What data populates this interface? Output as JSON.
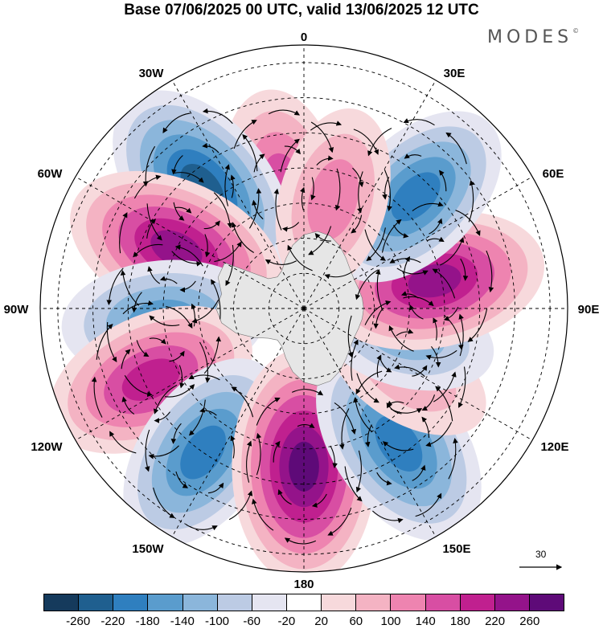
{
  "title": "Base 07/06/2025 00 UTC, valid 13/06/2025 12 UTC",
  "brand": {
    "name": "MODES",
    "mark": "©"
  },
  "map": {
    "projection": "polar-stereographic-south",
    "longitude_labels": {
      "north": "0",
      "ne": "30E",
      "ne2": "60E",
      "east": "90E",
      "se2": "120E",
      "se": "150E",
      "south": "180",
      "sw": "150W",
      "sw2": "120W",
      "west": "90W",
      "nw2": "60W",
      "nw": "30W"
    },
    "field_colors": {
      "pos": "#c0208f",
      "neg": "#2f7fbf",
      "land": "#e6e6e6"
    },
    "anomaly_centers": [
      {
        "lon": -10,
        "lat": -55,
        "value": 150
      },
      {
        "lon": -40,
        "lat": -45,
        "value": -230
      },
      {
        "lon": -65,
        "lat": -50,
        "value": 230
      },
      {
        "lon": -95,
        "lat": -50,
        "value": -170
      },
      {
        "lon": -115,
        "lat": -42,
        "value": 200
      },
      {
        "lon": -145,
        "lat": -40,
        "value": -190
      },
      {
        "lon": 180,
        "lat": -45,
        "value": 260
      },
      {
        "lon": 145,
        "lat": -43,
        "value": -210
      },
      {
        "lon": 122,
        "lat": -55,
        "value": 80
      },
      {
        "lon": 105,
        "lat": -60,
        "value": -100
      },
      {
        "lon": 78,
        "lat": -52,
        "value": 220
      },
      {
        "lon": 45,
        "lat": -45,
        "value": -180
      },
      {
        "lon": 15,
        "lat": -58,
        "value": 120
      }
    ]
  },
  "reference_vector": {
    "value": "30"
  },
  "colorbar": {
    "colors": [
      "#153a5c",
      "#1f5f8f",
      "#2f7fbf",
      "#5a9ccd",
      "#8bb6db",
      "#bccbe4",
      "#e5e5f1",
      "#ffffff",
      "#f7d9dc",
      "#f4b3c3",
      "#ee84b0",
      "#d84ea3",
      "#c0208f",
      "#94138a",
      "#5e0a78"
    ],
    "tick_labels": [
      "-260",
      "-220",
      "-180",
      "-140",
      "-100",
      "-60",
      "-20",
      "20",
      "60",
      "100",
      "140",
      "180",
      "220",
      "260"
    ]
  }
}
